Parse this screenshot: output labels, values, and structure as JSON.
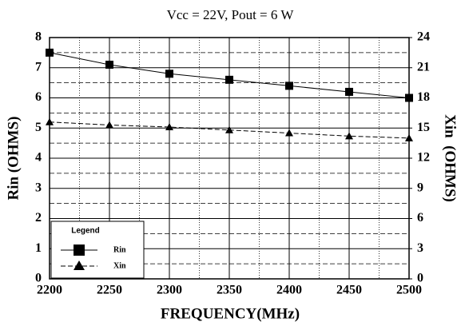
{
  "chart_data": {
    "type": "line",
    "title": "Vcc = 22V, Pout = 6 W",
    "x_label": "FREQUENCY(MHz)",
    "y_label": "Rin (OHMS)",
    "y2_label": "Xin  (OHMS)",
    "legend_title": "Legend",
    "legend": "lower left",
    "grid": true,
    "x": [
      2200,
      2250,
      2300,
      2350,
      2400,
      2450,
      2500
    ],
    "xlim": [
      2200,
      2500
    ],
    "xticks": [
      2200,
      2250,
      2300,
      2350,
      2400,
      2450,
      2500
    ],
    "ylim": [
      0,
      8
    ],
    "yticks": [
      0,
      1,
      2,
      3,
      4,
      5,
      6,
      7,
      8
    ],
    "y2lim": [
      0,
      24
    ],
    "y2ticks": [
      0,
      3,
      6,
      9,
      12,
      15,
      18,
      21,
      24
    ],
    "series": [
      {
        "name": "Rin",
        "color": "#000000",
        "marker": "square",
        "values": [
          7.5,
          7.1,
          6.8,
          6.6,
          6.4,
          6.2,
          6.0
        ]
      },
      {
        "name": "Xin",
        "color": "#000000",
        "marker": "triangle",
        "axis": "y2",
        "values": [
          15.6,
          15.3,
          15.1,
          14.8,
          14.5,
          14.2,
          14.0
        ]
      }
    ]
  }
}
